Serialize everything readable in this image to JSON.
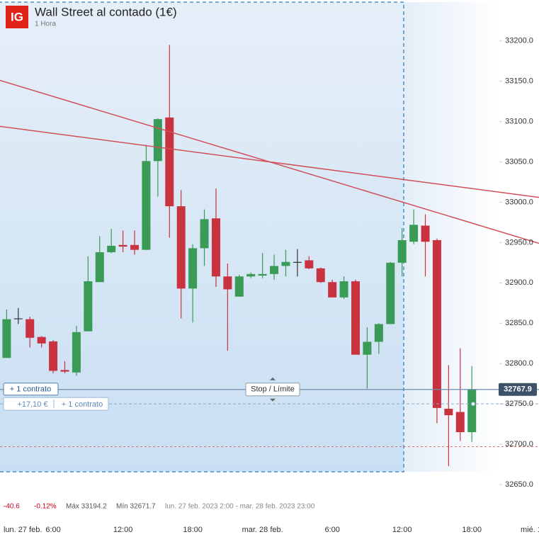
{
  "chart_data": {
    "type": "candlestick",
    "logo": "IG",
    "title": "Wall Street al contado (1€)",
    "subtitle": "1 Hora",
    "categories": [
      null,
      null,
      null,
      null,
      "6:00",
      null,
      null,
      null,
      null,
      null,
      "12:00",
      null,
      null,
      null,
      null,
      null,
      "18:00",
      null,
      null,
      null,
      null,
      null,
      "mar. 28 feb.",
      null,
      null,
      null,
      null,
      null,
      "6:00",
      null,
      null,
      null,
      null,
      null,
      "12:00",
      null,
      null,
      null,
      null,
      null,
      "18:00"
    ],
    "date_labels": [
      "lun. 27 feb.",
      "mié. 1"
    ],
    "open": [
      32807,
      32856,
      32855,
      32833,
      32827.5,
      32792,
      32789,
      32840,
      32901,
      32938,
      32947,
      32947,
      32941,
      33051,
      33105,
      32995,
      32893,
      32943,
      32980,
      32908,
      32883,
      32908,
      32909,
      32911,
      32921,
      32926,
      32928,
      32918,
      32901,
      32882,
      32902,
      32811,
      32827,
      32849,
      32925,
      32951,
      32971,
      32953,
      32744,
      32740,
      32715
    ],
    "high": [
      32867,
      32869,
      32858,
      32834,
      32829,
      32803,
      32847,
      32933,
      32958,
      32967,
      32965,
      32965,
      33071,
      33104,
      33195,
      33015,
      32948,
      32991,
      33017,
      32924,
      32910,
      32913,
      32937,
      32935,
      32941,
      32942,
      32933,
      32919,
      32904,
      32908,
      32904,
      32845,
      32850,
      32926,
      32968,
      32991,
      32985,
      32955,
      32798,
      32819,
      32797
    ],
    "low": [
      32807,
      32849,
      32820,
      32820,
      32788,
      32788,
      32785,
      32840,
      32901,
      32937,
      32938,
      32935,
      32941,
      33007,
      32956,
      32856,
      32851,
      32921,
      32895,
      32816,
      32883,
      32906,
      32906,
      32904,
      32908,
      32908,
      32917,
      32900,
      32882,
      32880,
      32811,
      32769,
      32812,
      32849,
      32908,
      32948,
      32908,
      32726,
      32673,
      32704,
      32703
    ],
    "close": [
      32855,
      32856,
      32832,
      32825,
      32791,
      32790,
      32839,
      32902,
      32938,
      32946,
      32945,
      32941,
      33051,
      33103,
      32995,
      32893,
      32943,
      32979,
      32908,
      32892,
      32908,
      32911,
      32911,
      32921,
      32926,
      32926,
      32918,
      32901,
      32882,
      32902,
      32811,
      32827,
      32849,
      32925,
      32953,
      32972,
      32951,
      32745,
      32736,
      32715,
      32768
    ],
    "up_color": "#3a9b57",
    "down_color": "#c9323f",
    "flat_color": "#333333",
    "ylim": [
      32636,
      33248
    ],
    "yticks": [
      {
        "value": 32650,
        "label": "32650.0"
      },
      {
        "value": 32700,
        "label": "32700.0"
      },
      {
        "value": 32750,
        "label": "32750.0"
      },
      {
        "value": 32800,
        "label": "32800.0"
      },
      {
        "value": 32850,
        "label": "32850.0"
      },
      {
        "value": 32900,
        "label": "32900.0"
      },
      {
        "value": 32950,
        "label": "32950.0"
      },
      {
        "value": 33000,
        "label": "33000.0"
      },
      {
        "value": 33050,
        "label": "33050.0"
      },
      {
        "value": 33100,
        "label": "33100.0"
      },
      {
        "value": 33150,
        "label": "33150.0"
      },
      {
        "value": 33200,
        "label": "33200.0"
      }
    ],
    "trend_lines": [
      {
        "start": 33151,
        "end": 32949,
        "color": "#d0505a"
      },
      {
        "start": 33094,
        "end": 33006,
        "color": "#d0505a"
      }
    ],
    "current_price": 32767.9,
    "position_level": 32750,
    "stop_level": 32697,
    "order_labels": {
      "contract": "+ 1 contrato",
      "pnl": "+17,10 €",
      "position": "+ 1 contrato",
      "stop": "Stop / Límite"
    },
    "stats": {
      "change": -40.6,
      "change_pct": "-0.12%",
      "max": "Máx 33194.2",
      "min": "Mín 32671.7",
      "range": "lun. 27 feb. 2023 2:00 - mar. 28 feb. 2023 23:00"
    }
  }
}
